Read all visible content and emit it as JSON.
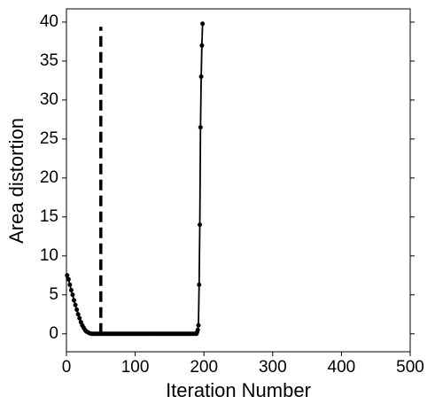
{
  "chart_data": {
    "type": "line",
    "xlabel": "Iteration Number",
    "ylabel": "Area distortion",
    "xlim": [
      0,
      500
    ],
    "xticks": [
      0,
      100,
      200,
      300,
      400,
      500
    ],
    "ylim": [
      -2.3,
      41.7
    ],
    "yticks": [
      0,
      5,
      10,
      15,
      20,
      25,
      30,
      35,
      40
    ],
    "series": [
      {
        "color": "#000000",
        "x": [
          1,
          3,
          5,
          7,
          9,
          11,
          13,
          15,
          17,
          19,
          21,
          23,
          25,
          27,
          29,
          31,
          33,
          35,
          37,
          39,
          41,
          43,
          45,
          47,
          49,
          51,
          53,
          55,
          57,
          59,
          61,
          63,
          65,
          67,
          69,
          71,
          73,
          75,
          77,
          79,
          81,
          83,
          85,
          87,
          89,
          91,
          93,
          95,
          97,
          99,
          101,
          103,
          105,
          107,
          109,
          111,
          113,
          115,
          117,
          119,
          121,
          123,
          125,
          127,
          129,
          131,
          133,
          135,
          137,
          139,
          141,
          143,
          145,
          147,
          149,
          151,
          153,
          155,
          157,
          159,
          161,
          163,
          165,
          167,
          169,
          171,
          173,
          175,
          177,
          179,
          181,
          183,
          185,
          187,
          189,
          190,
          191,
          192,
          193,
          194,
          195,
          196,
          197,
          198
        ],
        "values": [
          7.5,
          7.0,
          6.3,
          5.6,
          5.0,
          4.3,
          3.7,
          3.1,
          2.5,
          2.0,
          1.5,
          1.1,
          0.8,
          0.5,
          0.3,
          0.2,
          0.1,
          0.05,
          0,
          0,
          0,
          0,
          0,
          0,
          0,
          0,
          0,
          0,
          0,
          0,
          0,
          0,
          0,
          0,
          0,
          0,
          0,
          0,
          0,
          0,
          0,
          0,
          0,
          0,
          0,
          0,
          0,
          0,
          0,
          0,
          0,
          0,
          0,
          0,
          0,
          0,
          0,
          0,
          0,
          0,
          0,
          0,
          0,
          0,
          0,
          0,
          0,
          0,
          0,
          0,
          0,
          0,
          0,
          0,
          0,
          0,
          0,
          0,
          0,
          0,
          0,
          0,
          0,
          0,
          0,
          0,
          0,
          0,
          0,
          0,
          0,
          0,
          0,
          0,
          0,
          0.2,
          0.5,
          1.1,
          6.3,
          14,
          26.5,
          33,
          37,
          39.8
        ]
      }
    ],
    "vline": {
      "x": 50,
      "y": [
        0,
        39.4
      ],
      "color": "#000000"
    }
  }
}
